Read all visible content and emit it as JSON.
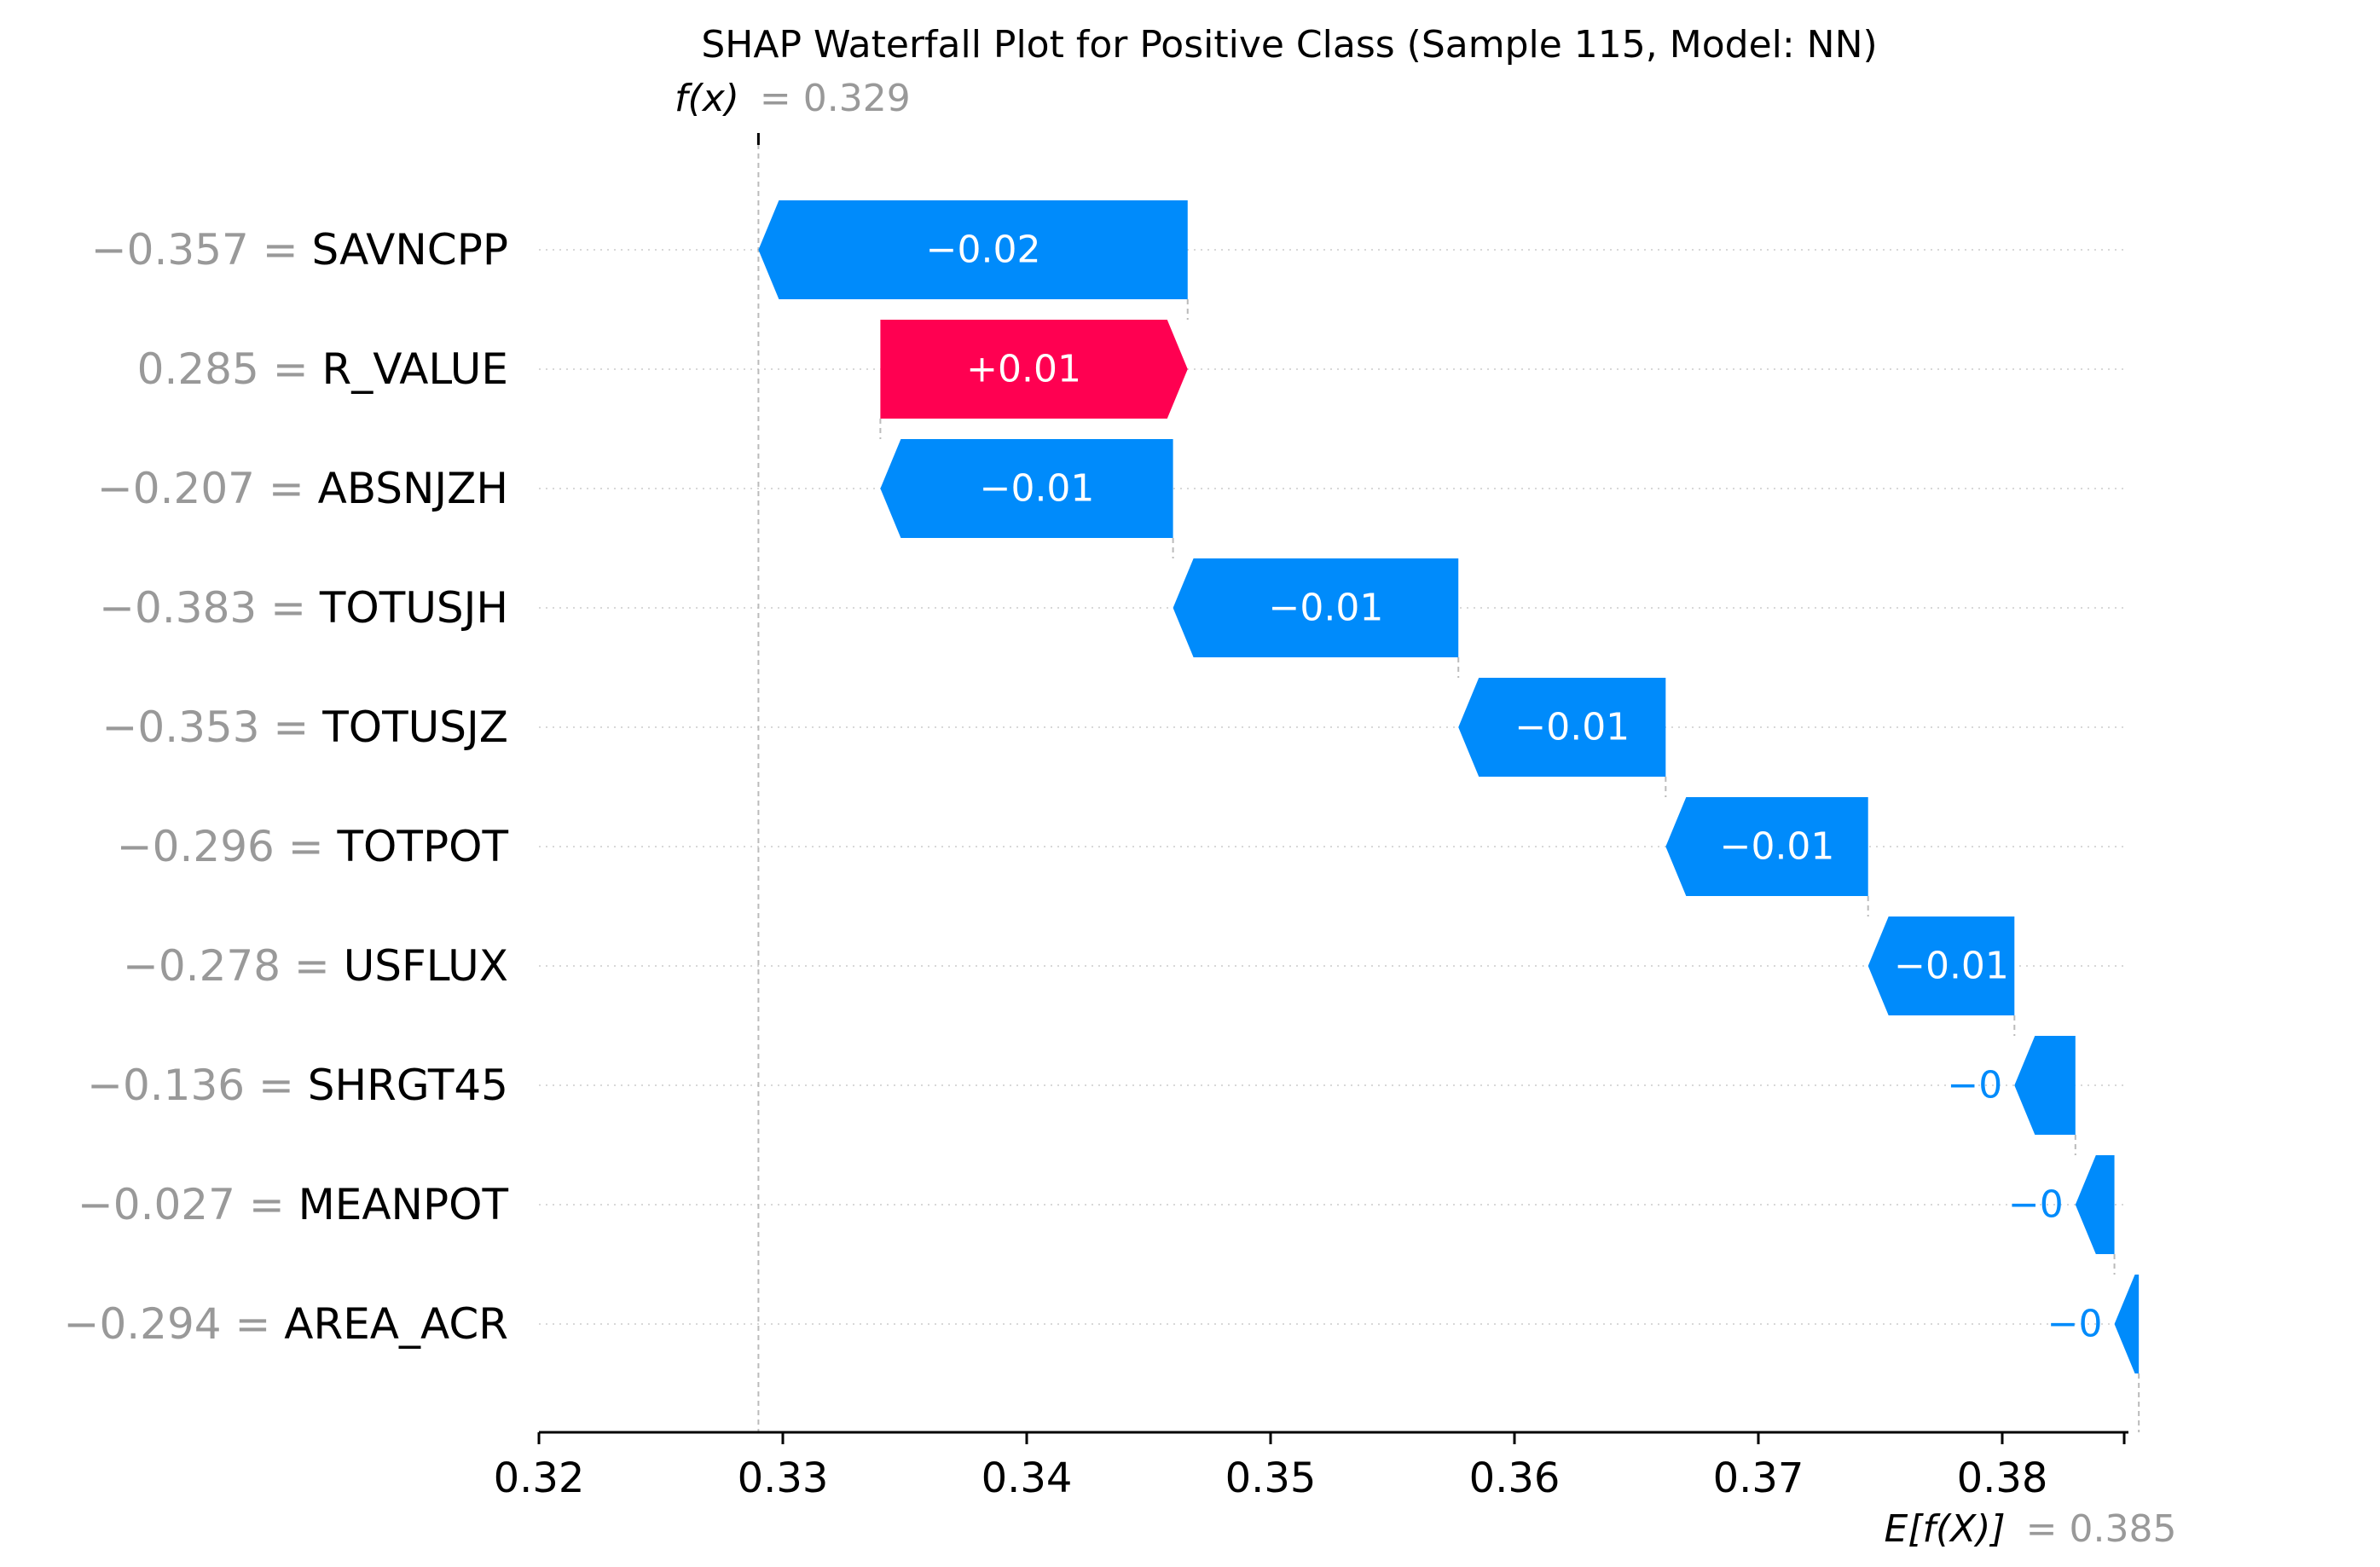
{
  "chart_data": {
    "type": "waterfall",
    "title": "SHAP Waterfall Plot for Positive Class (Sample 115, Model: NN)",
    "fx": {
      "label": "f(x)",
      "value_text": "= 0.329",
      "value": 0.329
    },
    "ex": {
      "label": "E[f(X)]",
      "value_text": "= 0.385",
      "value": 0.385
    },
    "xlim": [
      0.32,
      0.3855
    ],
    "ticks": [
      {
        "value": 0.32,
        "label": "0.32"
      },
      {
        "value": 0.33,
        "label": "0.33"
      },
      {
        "value": 0.34,
        "label": "0.34"
      },
      {
        "value": 0.35,
        "label": "0.35"
      },
      {
        "value": 0.36,
        "label": "0.36"
      },
      {
        "value": 0.37,
        "label": "0.37"
      },
      {
        "value": 0.38,
        "label": "0.38"
      }
    ],
    "features": [
      {
        "feature_value": "−0.357 =",
        "name": "SAVNCPP",
        "shap": -0.0176,
        "label": "−0.02"
      },
      {
        "feature_value": "0.285 =",
        "name": "R_VALUE",
        "shap": 0.0126,
        "label": "+0.01"
      },
      {
        "feature_value": "−0.207 =",
        "name": "ABSNJZH",
        "shap": -0.012,
        "label": "−0.01"
      },
      {
        "feature_value": "−0.383 =",
        "name": "TOTUSJH",
        "shap": -0.0117,
        "label": "−0.01"
      },
      {
        "feature_value": "−0.353 =",
        "name": "TOTUSJZ",
        "shap": -0.0085,
        "label": "−0.01"
      },
      {
        "feature_value": "−0.296 =",
        "name": "TOTPOT",
        "shap": -0.0083,
        "label": "−0.01"
      },
      {
        "feature_value": "−0.278 =",
        "name": "USFLUX",
        "shap": -0.006,
        "label": "−0.01"
      },
      {
        "feature_value": "−0.136 =",
        "name": "SHRGT45",
        "shap": -0.0025,
        "label": "−0"
      },
      {
        "feature_value": "−0.027 =",
        "name": "MEANPOT",
        "shap": -0.0016,
        "label": "−0"
      },
      {
        "feature_value": "−0.294 =",
        "name": "AREA_ACR",
        "shap": -0.001,
        "label": "−0"
      }
    ],
    "colors": {
      "positive": "#ff0051",
      "negative": "#008bfb",
      "value_gray": "#999999"
    }
  }
}
